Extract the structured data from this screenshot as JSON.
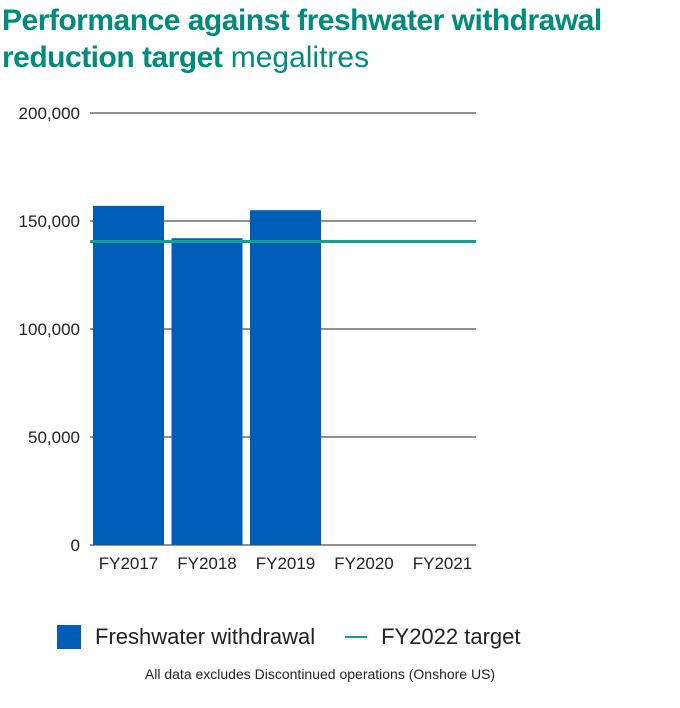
{
  "title": {
    "strong_line1": "Performance against freshwater withdrawal",
    "strong_line2": "reduction target",
    "unit": "megalitres"
  },
  "legend": {
    "bar_label": "Freshwater withdrawal",
    "line_label": "FY2022 target"
  },
  "footnote": "All data excludes Discontinued operations (Onshore US)",
  "colors": {
    "bar": "#005eb8",
    "target": "#14a090",
    "title": "#008b7b"
  },
  "chart_data": {
    "type": "bar",
    "title": "Performance against freshwater withdrawal reduction target megalitres",
    "categories": [
      "FY2017",
      "FY2018",
      "FY2019",
      "FY2020",
      "FY2021"
    ],
    "series": [
      {
        "name": "Freshwater withdrawal",
        "values": [
          157000,
          142000,
          155000,
          null,
          null
        ]
      }
    ],
    "target": {
      "name": "FY2022 target",
      "value": 140500
    },
    "y_ticks": [
      "0",
      "50,000",
      "100,000",
      "150,000",
      "200,000"
    ],
    "y_tick_values": [
      0,
      50000,
      100000,
      150000,
      200000
    ],
    "ylim": [
      0,
      200000
    ],
    "grid": true,
    "legend_position": "bottom"
  }
}
